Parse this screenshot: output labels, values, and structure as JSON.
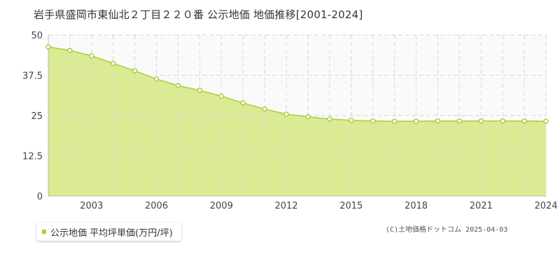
{
  "chart_data": {
    "type": "area",
    "title": "岩手県盛岡市東仙北２丁目２２０番 公示地価 地価推移[2001-2024]",
    "xlabel": "",
    "ylabel": "",
    "x": [
      2001,
      2002,
      2003,
      2004,
      2005,
      2006,
      2007,
      2008,
      2009,
      2010,
      2011,
      2012,
      2013,
      2014,
      2015,
      2016,
      2017,
      2018,
      2019,
      2020,
      2021,
      2022,
      2023,
      2024
    ],
    "xlim": [
      2001,
      2024
    ],
    "ylim": [
      0,
      50
    ],
    "x_tick_labels": [
      "2003",
      "2006",
      "2009",
      "2012",
      "2015",
      "2018",
      "2021",
      "2024"
    ],
    "x_tick_values": [
      2003,
      2006,
      2009,
      2012,
      2015,
      2018,
      2021,
      2024
    ],
    "y_tick_labels": [
      "0",
      "12.5",
      "25",
      "37.5",
      "50"
    ],
    "y_tick_values": [
      0,
      12.5,
      25,
      37.5,
      50
    ],
    "grid": true,
    "legend_position": "bottom-left",
    "series": [
      {
        "name": "公示地価 平均坪単価(万円/坪)",
        "color": "#a8cf3a",
        "fill": "#dbeb93",
        "values": [
          46.3,
          45.2,
          43.5,
          41.2,
          38.9,
          36.3,
          34.3,
          32.8,
          31.0,
          28.9,
          27.0,
          25.4,
          24.6,
          23.9,
          23.5,
          23.3,
          23.2,
          23.2,
          23.3,
          23.3,
          23.3,
          23.3,
          23.3,
          23.2
        ]
      }
    ]
  },
  "legend": {
    "label": "公示地価 平均坪単価(万円/坪)"
  },
  "copyright": "(C)土地価格ドットコム 2025-04-03",
  "colors": {
    "line": "#a8cf3a",
    "area": "#dbeb93",
    "upper_band": "#fafafa",
    "grid": "#d7d7d7",
    "axis_text": "#444444"
  }
}
